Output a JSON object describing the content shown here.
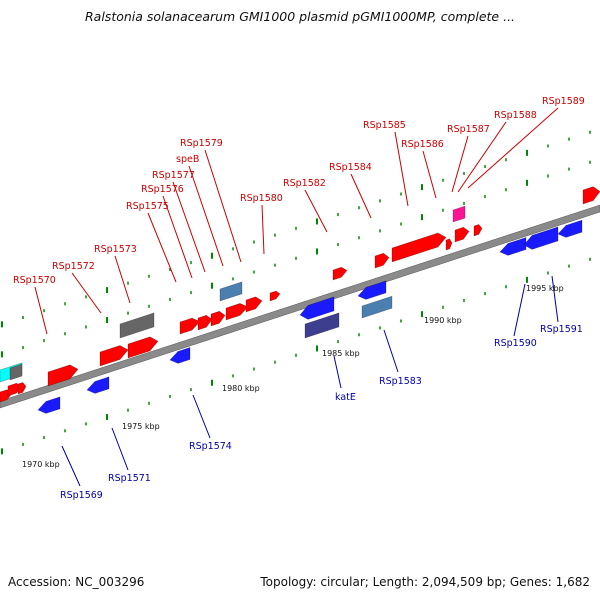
{
  "header": {
    "title": "Ralstonia solanacearum GMI1000 plasmid pGMI1000MP, complete ..."
  },
  "footer": {
    "accession": "Accession: NC_003296",
    "summary": "Topology: circular; Length: 2,094,509 bp; Genes: 1,682"
  },
  "colors": {
    "forward_gene": "#ff0000",
    "reverse_gene": "#1a1aff",
    "forward_label": "#cc0000",
    "reverse_label": "#0000aa",
    "backbone": "#888888",
    "tick": "#008800",
    "gene_grey": "#666666",
    "gene_steel": "#4a7fb0",
    "gene_magenta": "#ff1493",
    "gene_cyan": "#00ffff",
    "gene_slate": "#3e3e8f"
  },
  "map": {
    "kbp_ticks": [
      "1970 kbp",
      "1975 kbp",
      "1980 kbp",
      "1985 kbp",
      "1990 kbp",
      "1995 kbp"
    ],
    "forward_labels": [
      "RSp1570",
      "RSp1572",
      "RSp1573",
      "RSp1575",
      "RSp1576",
      "RSp1577",
      "speB",
      "RSp1579",
      "RSp1580",
      "RSp1582",
      "RSp1584",
      "RSp1585",
      "RSp1586",
      "RSp1587",
      "RSp1588",
      "RSp1589"
    ],
    "reverse_labels": [
      "RSp1569",
      "RSp1571",
      "RSp1574",
      "katE",
      "RSp1583",
      "RSp1590",
      "RSp1591"
    ]
  }
}
